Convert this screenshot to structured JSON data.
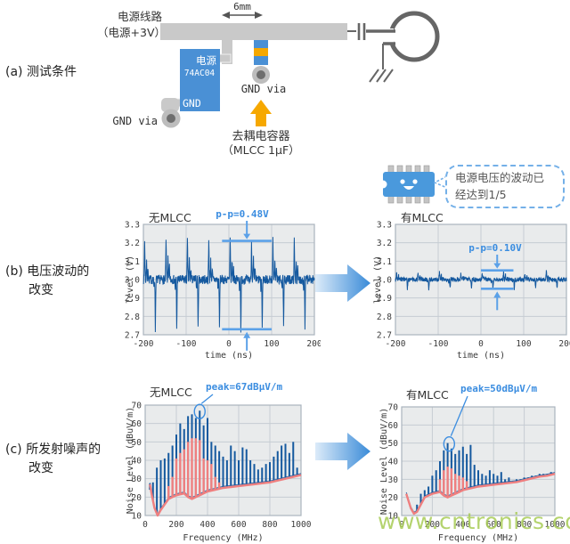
{
  "watermark": "www.cntronics.com",
  "colors": {
    "accent_blue": "#4a90d5",
    "accent_orange": "#f6a800",
    "pcb_gray": "#c9c9c9",
    "trace_blue": "#15599f",
    "trace_red": "#ef7f7f",
    "annotation_blue": "#3b8de0"
  },
  "section_a": {
    "label": "(a) 测试条件",
    "dim_label": "6mm",
    "power_line_label_line1": "电源线路",
    "power_line_label_line2": "（电源+3V）",
    "ic": {
      "power_pin": "电源",
      "part": "74AC04",
      "gnd_pin": "GND"
    },
    "gnd_via_left_label": "GND via",
    "gnd_via_center_label": "GND via",
    "decoupling_line1": "去耦电容器",
    "decoupling_line2": "（MLCC 1μF）"
  },
  "section_b": {
    "label_line1": "(b) 电压波动的",
    "label_line2": "改变",
    "callout": {
      "line1": "电源电压的波动已",
      "line2": "经达到1/5"
    }
  },
  "section_c": {
    "label_line1": "(c) 所发射噪声的",
    "label_line2": "改变"
  },
  "chart_data": [
    {
      "id": "voltage-no-mlcc",
      "type": "line",
      "title": "无MLCC",
      "xlabel": "time (ns)",
      "ylabel": "level (V)",
      "xlim": [
        -200,
        200
      ],
      "ylim": [
        2.7,
        3.3
      ],
      "xticks": [
        -200,
        -100,
        0,
        100,
        200
      ],
      "yticks": [
        2.7,
        2.8,
        2.9,
        3.0,
        3.1,
        3.2,
        3.3
      ],
      "ytick_labels": [
        "2.7",
        "2.8",
        "2.9",
        "3.0",
        "3.1",
        "3.2",
        "3.3"
      ],
      "grid": true,
      "annotation": {
        "text": "p-p=0.48V",
        "upper_v": 3.21,
        "lower_v": 2.73
      },
      "signal": {
        "baseline_v": 3.0,
        "period_ns": 50,
        "peak_v": 3.21,
        "dip_v": 2.73,
        "noise_v": 0.025,
        "description": "periodic switching transients every 50 ns: spike to 3.21 V, dip to 2.73 V"
      }
    },
    {
      "id": "voltage-with-mlcc",
      "type": "line",
      "title": "有MLCC",
      "xlabel": "time (ns)",
      "ylabel": "level (V)",
      "xlim": [
        -200,
        200
      ],
      "ylim": [
        2.7,
        3.3
      ],
      "xticks": [
        -200,
        -100,
        0,
        100,
        200
      ],
      "yticks": [
        2.7,
        2.8,
        2.9,
        3.0,
        3.1,
        3.2,
        3.3
      ],
      "ytick_labels": [
        "2.7",
        "2.8",
        "2.9",
        "3.0",
        "3.1",
        "3.2",
        "3.3"
      ],
      "grid": true,
      "annotation": {
        "text": "p-p=0.10V",
        "upper_v": 3.05,
        "lower_v": 2.95
      },
      "signal": {
        "baseline_v": 3.0,
        "period_ns": 50,
        "peak_v": 3.04,
        "dip_v": 2.95,
        "noise_v": 0.012,
        "description": "flat 3.0 V line with small 0.1 V ripple every 50 ns"
      }
    },
    {
      "id": "noise-no-mlcc",
      "type": "line",
      "title": "无MLCC",
      "xlabel": "Frequency (MHz)",
      "ylabel": "Noise Level (dBuV/m)",
      "xlim": [
        0,
        1000
      ],
      "ylim": [
        10,
        70
      ],
      "xticks": [
        0,
        200,
        400,
        600,
        800,
        1000
      ],
      "yticks": [
        10,
        20,
        30,
        40,
        50,
        60,
        70
      ],
      "grid": true,
      "annotation": {
        "text": "peak=67dBμV/m",
        "peak_mhz": 350,
        "peak_dbuv": 67
      },
      "series": [
        {
          "name": "harmonic peaks",
          "color": "#15599f",
          "points": [
            [
              30,
              24
            ],
            [
              50,
              28
            ],
            [
              75,
              36
            ],
            [
              100,
              40
            ],
            [
              125,
              41
            ],
            [
              150,
              44
            ],
            [
              175,
              48
            ],
            [
              200,
              54
            ],
            [
              225,
              60
            ],
            [
              250,
              57
            ],
            [
              275,
              64
            ],
            [
              300,
              65
            ],
            [
              325,
              63
            ],
            [
              350,
              67
            ],
            [
              375,
              59
            ],
            [
              400,
              63
            ],
            [
              425,
              50
            ],
            [
              450,
              48
            ],
            [
              475,
              45
            ],
            [
              500,
              42
            ],
            [
              525,
              40
            ],
            [
              550,
              48
            ],
            [
              575,
              45
            ],
            [
              600,
              40
            ],
            [
              625,
              47
            ],
            [
              650,
              46
            ],
            [
              675,
              40
            ],
            [
              700,
              38
            ],
            [
              725,
              35
            ],
            [
              750,
              36
            ],
            [
              775,
              38
            ],
            [
              800,
              39
            ],
            [
              825,
              42
            ],
            [
              850,
              45
            ],
            [
              875,
              48
            ],
            [
              900,
              49
            ],
            [
              925,
              44
            ],
            [
              950,
              50
            ],
            [
              975,
              36
            ]
          ]
        },
        {
          "name": "background envelope",
          "color": "#ef7f7f",
          "points": [
            [
              30,
              27
            ],
            [
              45,
              20
            ],
            [
              60,
              14
            ],
            [
              80,
              10
            ],
            [
              100,
              13
            ],
            [
              125,
              16
            ],
            [
              150,
              19
            ],
            [
              175,
              20
            ],
            [
              200,
              21
            ],
            [
              225,
              21.5
            ],
            [
              250,
              22
            ],
            [
              275,
              20
            ],
            [
              300,
              19
            ],
            [
              325,
              20
            ],
            [
              350,
              21
            ],
            [
              375,
              22
            ],
            [
              400,
              23
            ],
            [
              425,
              23.5
            ],
            [
              450,
              24
            ],
            [
              500,
              25
            ],
            [
              550,
              25.5
            ],
            [
              600,
              26
            ],
            [
              650,
              26.5
            ],
            [
              700,
              27
            ],
            [
              750,
              27.5
            ],
            [
              800,
              28
            ],
            [
              850,
              29
            ],
            [
              900,
              30
            ],
            [
              950,
              31
            ],
            [
              1000,
              32
            ]
          ]
        },
        {
          "name": "envelope peaks",
          "color": "#ef7f7f",
          "points": [
            [
              150,
              26
            ],
            [
              175,
              31
            ],
            [
              200,
              41
            ],
            [
              225,
              44
            ],
            [
              250,
              46
            ],
            [
              275,
              50
            ],
            [
              300,
              52
            ],
            [
              325,
              52
            ],
            [
              350,
              51
            ],
            [
              375,
              41
            ],
            [
              400,
              40
            ],
            [
              425,
              38
            ],
            [
              450,
              31
            ],
            [
              475,
              28
            ]
          ]
        }
      ]
    },
    {
      "id": "noise-with-mlcc",
      "type": "line",
      "title": "有MLCC",
      "xlabel": "Frequency (MHz)",
      "ylabel": "Noise Level (dBuV/m)",
      "xlim": [
        0,
        1000
      ],
      "ylim": [
        10,
        70
      ],
      "xticks": [
        0,
        200,
        400,
        600,
        800,
        1000
      ],
      "yticks": [
        10,
        20,
        30,
        40,
        50,
        60,
        70
      ],
      "grid": true,
      "annotation": {
        "text": "peak=50dBμV/m",
        "peak_mhz": 310,
        "peak_dbuv": 50
      },
      "series": [
        {
          "name": "harmonic peaks",
          "color": "#15599f",
          "points": [
            [
              100,
              16
            ],
            [
              125,
              22
            ],
            [
              150,
              24
            ],
            [
              175,
              26
            ],
            [
              200,
              32
            ],
            [
              225,
              35
            ],
            [
              250,
              40
            ],
            [
              275,
              46
            ],
            [
              300,
              50
            ],
            [
              325,
              47
            ],
            [
              350,
              44
            ],
            [
              375,
              46
            ],
            [
              400,
              48
            ],
            [
              425,
              44
            ],
            [
              450,
              49
            ],
            [
              475,
              38
            ],
            [
              500,
              35
            ],
            [
              525,
              33
            ],
            [
              550,
              32
            ],
            [
              575,
              35
            ],
            [
              600,
              33
            ],
            [
              625,
              32
            ],
            [
              650,
              34
            ],
            [
              675,
              30
            ],
            [
              700,
              31
            ],
            [
              725,
              29
            ],
            [
              750,
              30
            ],
            [
              775,
              30
            ],
            [
              800,
              31
            ],
            [
              825,
              31
            ],
            [
              850,
              32
            ],
            [
              875,
              32
            ],
            [
              900,
              33
            ],
            [
              925,
              33
            ],
            [
              950,
              33
            ],
            [
              975,
              34
            ]
          ]
        },
        {
          "name": "background envelope",
          "color": "#ef7f7f",
          "points": [
            [
              30,
              22
            ],
            [
              45,
              18
            ],
            [
              60,
              14
            ],
            [
              80,
              11
            ],
            [
              100,
              12
            ],
            [
              125,
              16
            ],
            [
              150,
              20
            ],
            [
              175,
              21
            ],
            [
              200,
              22
            ],
            [
              225,
              22.5
            ],
            [
              250,
              23
            ],
            [
              275,
              21
            ],
            [
              300,
              20
            ],
            [
              325,
              21
            ],
            [
              350,
              22
            ],
            [
              375,
              23
            ],
            [
              400,
              24
            ],
            [
              425,
              24.5
            ],
            [
              450,
              25
            ],
            [
              500,
              26
            ],
            [
              550,
              26.5
            ],
            [
              600,
              27
            ],
            [
              650,
              27.5
            ],
            [
              700,
              28
            ],
            [
              750,
              28.5
            ],
            [
              800,
              29.5
            ],
            [
              850,
              30.5
            ],
            [
              900,
              31.5
            ],
            [
              950,
              32
            ],
            [
              1000,
              33
            ]
          ]
        },
        {
          "name": "envelope peaks",
          "color": "#ef7f7f",
          "points": [
            [
              250,
              30
            ],
            [
              275,
              35
            ],
            [
              300,
              37
            ],
            [
              325,
              36
            ],
            [
              350,
              33
            ],
            [
              375,
              32
            ],
            [
              400,
              31
            ],
            [
              425,
              29
            ]
          ]
        }
      ]
    }
  ]
}
